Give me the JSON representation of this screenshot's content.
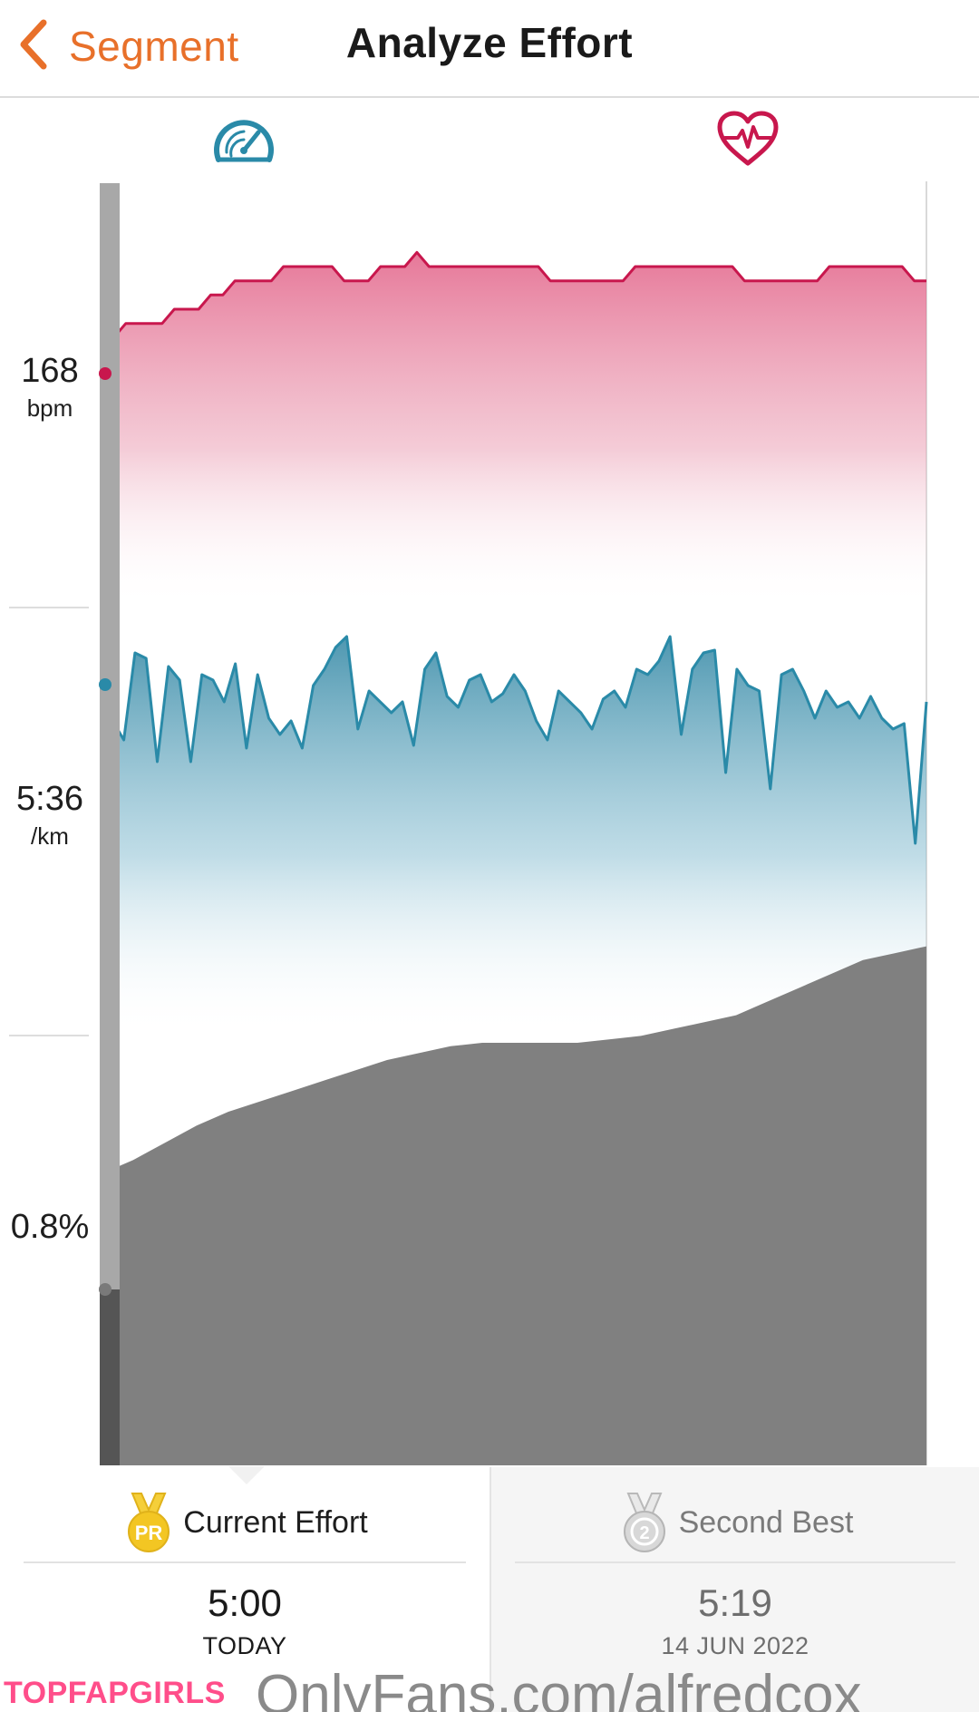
{
  "header": {
    "back_label": "Segment",
    "title": "Analyze Effort"
  },
  "icons": {
    "pace_icon": "speedometer-icon",
    "heart_icon": "heart-rate-icon",
    "back_icon": "chevron-left-icon",
    "pr_medal_icon": "pr-medal-icon",
    "second_medal_icon": "silver-medal-icon"
  },
  "colors": {
    "accent": "#e8702a",
    "heart_rate": "#c8174d",
    "pace": "#2a8aa8",
    "elevation": "#7f7f7f",
    "pr_gold": "#f0c419"
  },
  "chart_data": [
    {
      "type": "area",
      "metric": "heart_rate",
      "current_label": {
        "value": "168",
        "unit": "bpm"
      },
      "values": [
        168,
        167,
        168,
        168,
        168,
        168,
        169,
        169,
        169,
        170,
        170,
        171,
        171,
        171,
        171,
        172,
        172,
        172,
        172,
        172,
        171,
        171,
        171,
        172,
        172,
        172,
        173,
        172,
        172,
        172,
        172,
        172,
        172,
        172,
        172,
        172,
        172,
        171,
        171,
        171,
        171,
        171,
        171,
        171,
        172,
        172,
        172,
        172,
        172,
        172,
        172,
        172,
        172,
        171,
        171,
        171,
        171,
        171,
        171,
        171,
        172,
        172,
        172,
        172,
        172,
        172,
        172,
        171,
        171
      ],
      "ylim": [
        148,
        178
      ]
    },
    {
      "type": "area",
      "metric": "pace",
      "current_label": {
        "value": "5:36",
        "unit": "/km"
      },
      "values": [
        0.55,
        0.55,
        0.48,
        0.8,
        0.78,
        0.4,
        0.75,
        0.7,
        0.4,
        0.72,
        0.7,
        0.62,
        0.76,
        0.45,
        0.72,
        0.56,
        0.5,
        0.55,
        0.45,
        0.68,
        0.74,
        0.82,
        0.86,
        0.52,
        0.66,
        0.62,
        0.58,
        0.62,
        0.46,
        0.74,
        0.8,
        0.64,
        0.6,
        0.7,
        0.72,
        0.62,
        0.65,
        0.72,
        0.66,
        0.55,
        0.48,
        0.66,
        0.62,
        0.58,
        0.52,
        0.63,
        0.66,
        0.6,
        0.74,
        0.72,
        0.77,
        0.86,
        0.5,
        0.74,
        0.8,
        0.81,
        0.36,
        0.74,
        0.68,
        0.66,
        0.3,
        0.72,
        0.74,
        0.66,
        0.56,
        0.66,
        0.6,
        0.62,
        0.56,
        0.64,
        0.56,
        0.52,
        0.54,
        0.1,
        0.62
      ],
      "ylim": [
        0,
        1
      ]
    },
    {
      "type": "area",
      "metric": "elevation_grade",
      "current_label": {
        "value": "0.8%",
        "unit": ""
      },
      "values": [
        0.12,
        0.16,
        0.21,
        0.26,
        0.3,
        0.33,
        0.36,
        0.39,
        0.42,
        0.45,
        0.47,
        0.49,
        0.5,
        0.5,
        0.5,
        0.5,
        0.51,
        0.52,
        0.54,
        0.56,
        0.58,
        0.62,
        0.66,
        0.7,
        0.74,
        0.76,
        0.78
      ],
      "ylim": [
        0,
        1
      ]
    }
  ],
  "cards": {
    "current": {
      "badge": "PR",
      "title": "Current Effort",
      "time": "5:00",
      "date": "TODAY"
    },
    "second": {
      "badge": "2",
      "title": "Second Best",
      "time": "5:19",
      "date": "14 JUN 2022"
    }
  },
  "watermarks": {
    "left": "TOPFAPGIRLS",
    "right": "OnlyFans.com/alfredcox"
  }
}
